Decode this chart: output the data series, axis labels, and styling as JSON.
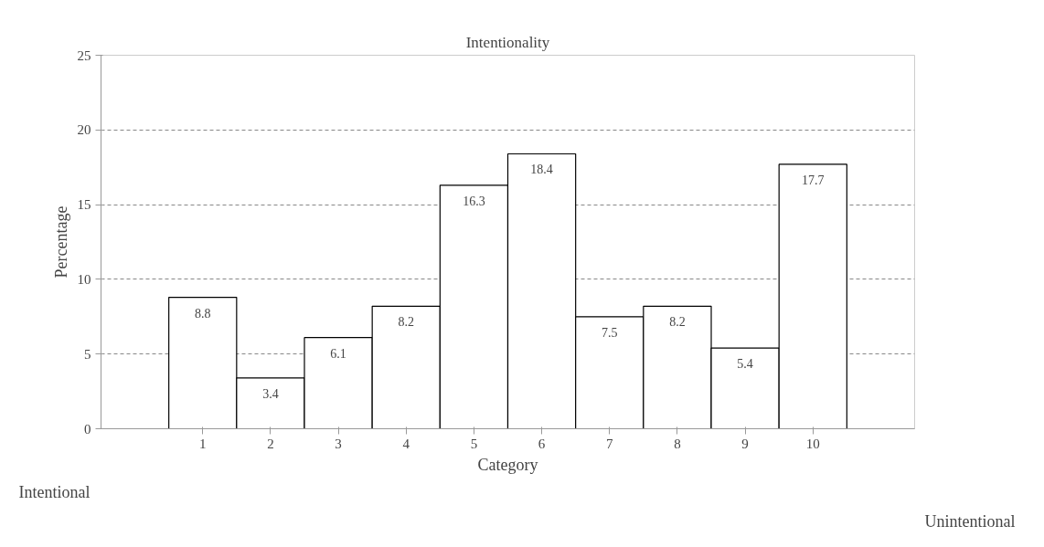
{
  "chart_data": {
    "type": "bar",
    "title": "Intentionality",
    "xlabel": "Category",
    "ylabel": "Percentage",
    "categories": [
      "1",
      "2",
      "3",
      "4",
      "5",
      "6",
      "7",
      "8",
      "9",
      "10"
    ],
    "values": [
      8.8,
      3.4,
      6.1,
      8.2,
      16.3,
      18.4,
      7.5,
      8.2,
      5.4,
      17.7
    ],
    "color": "#ffffff",
    "ylim": [
      0,
      25
    ],
    "yticks": [
      0,
      5,
      10,
      15,
      20,
      25
    ],
    "grid": "y",
    "data_labels": true,
    "annotations": [
      "Intentional",
      "Unintentional"
    ]
  }
}
